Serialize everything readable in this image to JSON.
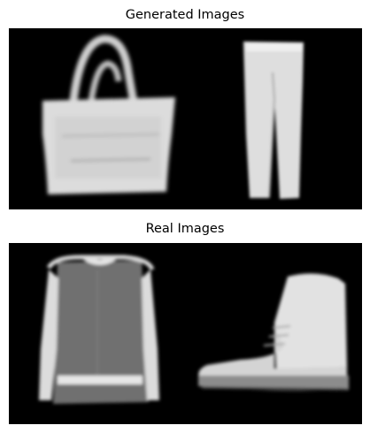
{
  "figure": {
    "generated_title": "Generated Images",
    "real_title": "Real Images"
  },
  "generated_images": [
    {
      "item": "bag-icon"
    },
    {
      "item": "trousers-icon"
    }
  ],
  "real_images": [
    {
      "item": "pullover-icon"
    },
    {
      "item": "ankle-boot-icon"
    }
  ],
  "colors": {
    "background": "#ffffff",
    "image_background": "#000000",
    "item_light": "#e8e8e8",
    "item_mid": "#7a7a7a"
  }
}
